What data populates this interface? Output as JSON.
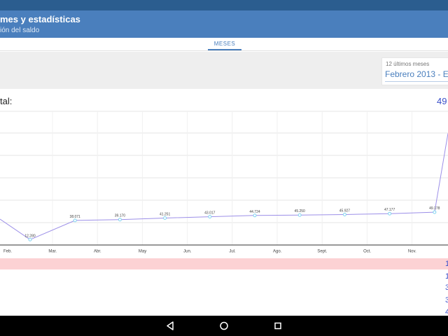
{
  "header": {
    "title": "mes y estadísticas",
    "subtitle": "ión del saldo"
  },
  "tabs": [
    {
      "label": "MESES",
      "selected": true
    }
  ],
  "period": {
    "caption": "12 últimos meses",
    "value": "Febrero 2013 - En"
  },
  "summary": {
    "label": "tal:",
    "value": "49"
  },
  "chart_data": {
    "type": "line",
    "categories": [
      "Feb.",
      "Mar.",
      "Abr.",
      "May",
      "Jun.",
      "Jul.",
      "Ago.",
      "Sept.",
      "Oct.",
      "Nov."
    ],
    "series": [
      {
        "x": [
          "Feb.",
          "Mar.",
          "Abr.",
          "May",
          "Jun.",
          "Jul.",
          "Ago.",
          "Sept.",
          "Oct.",
          "Nov."
        ],
        "values": [
          12280,
          38071,
          39170,
          41251,
          43017,
          44724,
          45250,
          45927,
          47177,
          49178
        ],
        "labels": [
          "12.280",
          "38.071",
          "39.170",
          "41.251",
          "43.017",
          "44.724",
          "45.250",
          "45.927",
          "47.177",
          "49.178"
        ],
        "color": "#9c8fe8"
      }
    ],
    "grid": true
  },
  "table": {
    "right_values": [
      "1",
      "1",
      "3",
      "3",
      "4"
    ]
  },
  "colors": {
    "status_bar": "#2b5d8f",
    "app_bar": "#4a7fbd",
    "accent": "#4a7fbd",
    "value_text": "#3a4fc9",
    "highlight_row": "#fcd2d4",
    "line": "#9c8fe8",
    "point": "#7fd3f0"
  },
  "nav": {
    "back": "back-icon",
    "home": "home-icon",
    "recents": "recents-icon"
  }
}
